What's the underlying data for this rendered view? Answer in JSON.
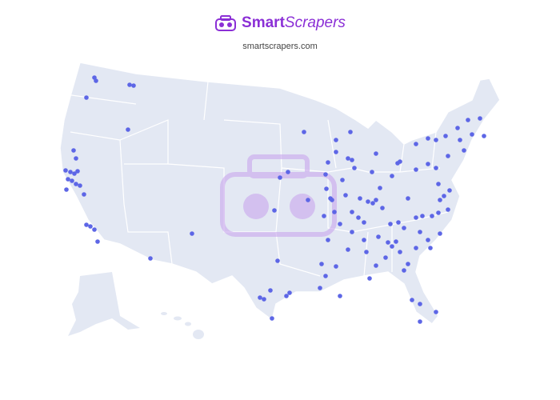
{
  "header": {
    "brand": {
      "bold": "Smart",
      "italic": "Scrapers"
    },
    "url": "smartscrapers.com"
  }
}
